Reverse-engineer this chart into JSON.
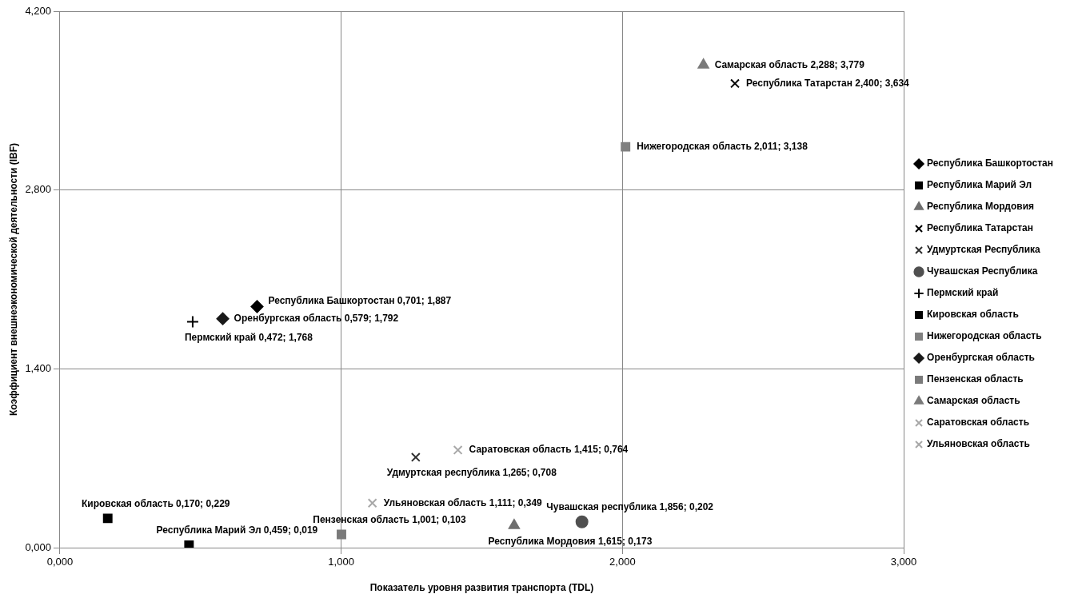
{
  "chart_data": {
    "type": "scatter",
    "xlabel": "Показатель уровня развития транспорта (TDL)",
    "ylabel": "Коэффициент внешнеэкономической деятельности (IBF)",
    "xlim": [
      0,
      3
    ],
    "ylim": [
      0,
      4.2
    ],
    "xticks": [
      {
        "value": 0,
        "label": "0,000"
      },
      {
        "value": 1,
        "label": "1,000"
      },
      {
        "value": 2,
        "label": "2,000"
      },
      {
        "value": 3,
        "label": "3,000"
      }
    ],
    "yticks": [
      {
        "value": 0,
        "label": "0,000"
      },
      {
        "value": 1.4,
        "label": "1,400"
      },
      {
        "value": 2.8,
        "label": "2,800"
      },
      {
        "value": 4.2,
        "label": "4,200"
      }
    ],
    "grid": true,
    "legend": "right",
    "series": [
      {
        "name": "Республика Башкортостан",
        "color": "#000000",
        "marker": "diamond",
        "x": [
          0.701
        ],
        "values": [
          1.887
        ],
        "value_labels": [
          "Республика Башкортостан 0,701; 1,887"
        ]
      },
      {
        "name": "Республика Марий Эл",
        "color": "#000000",
        "marker": "square",
        "x": [
          0.459
        ],
        "values": [
          0.019
        ],
        "value_labels": [
          "Республика Марий Эл 0,459; 0,019"
        ]
      },
      {
        "name": "Республика Мордовия",
        "color": "#6e6e6e",
        "marker": "triangle",
        "x": [
          1.615
        ],
        "values": [
          0.173
        ],
        "value_labels": [
          "Республика Мордовия 1,615; 0,173"
        ]
      },
      {
        "name": "Республика Татарстан",
        "color": "#000000",
        "marker": "cross",
        "x": [
          2.4
        ],
        "values": [
          3.634
        ],
        "value_labels": [
          "Республика Татарстан 2,400; 3,634"
        ]
      },
      {
        "name": "Удмуртская Республика",
        "color": "#303030",
        "marker": "cross",
        "x": [
          1.265
        ],
        "values": [
          0.708
        ],
        "value_labels": [
          "Удмуртская республика 1,265; 0,708"
        ]
      },
      {
        "name": "Чувашская Республика",
        "color": "#505050",
        "marker": "circle",
        "x": [
          1.856
        ],
        "values": [
          0.202
        ],
        "value_labels": [
          "Чувашская республика 1,856; 0,202"
        ]
      },
      {
        "name": "Пермский край",
        "color": "#000000",
        "marker": "plus",
        "x": [
          0.472
        ],
        "values": [
          1.768
        ],
        "value_labels": [
          "Пермский край 0,472; 1,768"
        ]
      },
      {
        "name": "Кировская область",
        "color": "#000000",
        "marker": "square",
        "x": [
          0.17
        ],
        "values": [
          0.229
        ],
        "value_labels": [
          "Кировская область 0,170; 0,229"
        ]
      },
      {
        "name": "Нижегородская область",
        "color": "#808080",
        "marker": "square",
        "x": [
          2.011
        ],
        "values": [
          3.138
        ],
        "value_labels": [
          "Нижегородская область 2,011; 3,138"
        ]
      },
      {
        "name": "Оренбургская область",
        "color": "#1a1a1a",
        "marker": "diamond",
        "x": [
          0.579
        ],
        "values": [
          1.792
        ],
        "value_labels": [
          "Оренбургская область 0,579; 1,792"
        ]
      },
      {
        "name": "Пензенская область",
        "color": "#7a7a7a",
        "marker": "square",
        "x": [
          1.001
        ],
        "values": [
          0.103
        ],
        "value_labels": [
          "Пензенская область 1,001; 0,103"
        ]
      },
      {
        "name": "Самарская область",
        "color": "#7a7a7a",
        "marker": "triangle",
        "x": [
          2.288
        ],
        "values": [
          3.779
        ],
        "value_labels": [
          "Самарская область 2,288; 3,779"
        ]
      },
      {
        "name": "Саратовская область",
        "color": "#a8a8a8",
        "marker": "cross",
        "x": [
          1.415
        ],
        "values": [
          0.764
        ],
        "value_labels": [
          "Саратовская область 1,415; 0,764"
        ]
      },
      {
        "name": "Ульяновская область",
        "color": "#a8a8a8",
        "marker": "cross",
        "x": [
          1.111
        ],
        "values": [
          0.349
        ],
        "value_labels": [
          "Ульяновская область 1,111; 0,349"
        ]
      }
    ]
  }
}
